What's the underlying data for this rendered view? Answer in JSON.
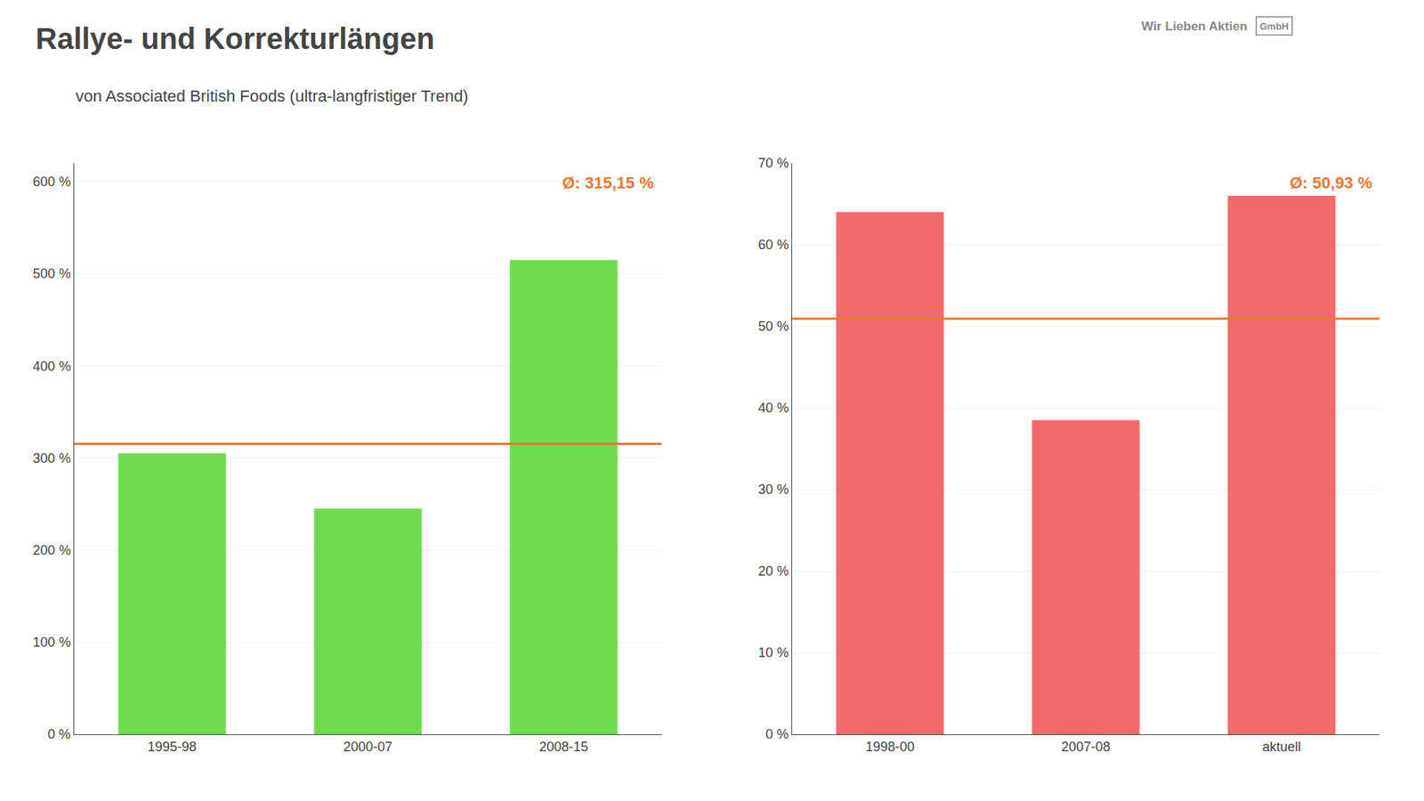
{
  "title": "Rallye- und Korrekturlängen",
  "subtitle": "von Associated British Foods (ultra-langfristiger Trend)",
  "annotations": [
    "Wir Lieben Aktien",
    "GmbH"
  ],
  "chart_data": [
    {
      "type": "bar",
      "categories": [
        "1995-98",
        "2000-07",
        "2008-15"
      ],
      "values": [
        305,
        245,
        515
      ],
      "color": "#6edb4f",
      "average": {
        "value": 315.15,
        "label": "Ø: 315,15 %",
        "color": "#e87832"
      },
      "ylim": [
        0,
        620
      ],
      "yticks": [
        {
          "value": 0,
          "label": "0 %"
        },
        {
          "value": 100,
          "label": "100 %"
        },
        {
          "value": 200,
          "label": "200 %"
        },
        {
          "value": 300,
          "label": "300 %"
        },
        {
          "value": 400,
          "label": "400 %"
        },
        {
          "value": 500,
          "label": "500 %"
        },
        {
          "value": 600,
          "label": "600 %"
        }
      ],
      "grid": true
    },
    {
      "type": "bar",
      "categories": [
        "1998-00",
        "2007-08",
        "aktuell"
      ],
      "values": [
        64,
        38.5,
        66
      ],
      "color": "#f16b6b",
      "average": {
        "value": 50.93,
        "label": "Ø: 50,93 %",
        "color": "#e87832"
      },
      "ylim": [
        0,
        70
      ],
      "yticks": [
        {
          "value": 0,
          "label": "0 %"
        },
        {
          "value": 10,
          "label": "10 %"
        },
        {
          "value": 20,
          "label": "20 %"
        },
        {
          "value": 30,
          "label": "30 %"
        },
        {
          "value": 40,
          "label": "40 %"
        },
        {
          "value": 50,
          "label": "50 %"
        },
        {
          "value": 60,
          "label": "60 %"
        },
        {
          "value": 70,
          "label": "70 %"
        }
      ],
      "grid": true
    }
  ]
}
